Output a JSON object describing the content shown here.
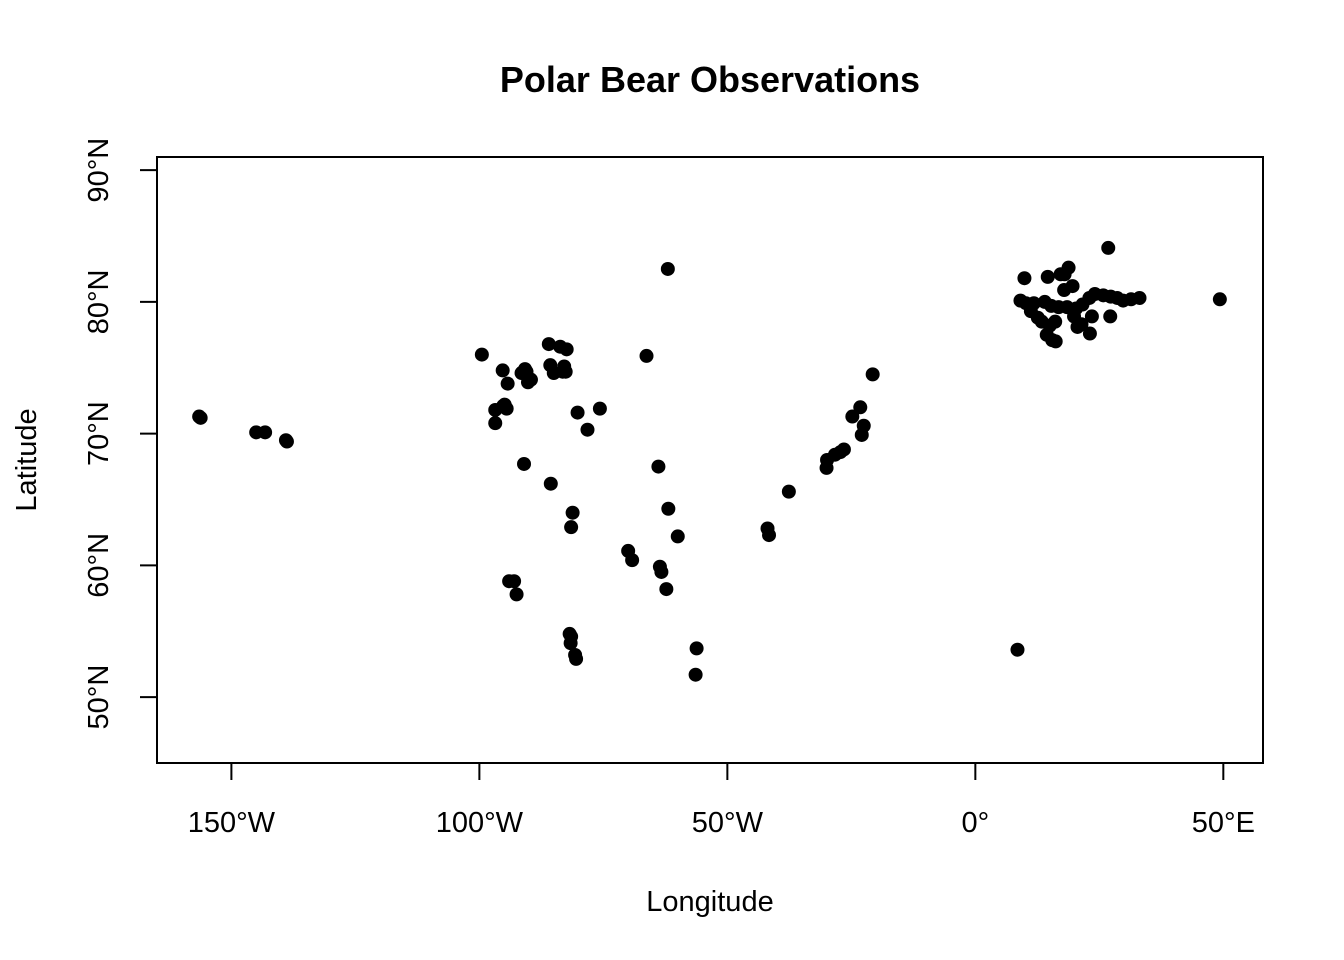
{
  "chart_data": {
    "type": "scatter",
    "title": "Polar Bear Observations",
    "xlabel": "Longitude",
    "ylabel": "Latitude",
    "xlim": [
      -165,
      58
    ],
    "ylim": [
      45,
      91
    ],
    "xticks": [
      {
        "value": -150,
        "label": "150°W"
      },
      {
        "value": -100,
        "label": "100°W"
      },
      {
        "value": -50,
        "label": "50°W"
      },
      {
        "value": 0,
        "label": "0°"
      },
      {
        "value": 50,
        "label": "50°E"
      }
    ],
    "yticks": [
      {
        "value": 50,
        "label": "50°N"
      },
      {
        "value": 60,
        "label": "60°N"
      },
      {
        "value": 70,
        "label": "70°N"
      },
      {
        "value": 80,
        "label": "80°N"
      },
      {
        "value": 90,
        "label": "90°N"
      }
    ],
    "grid": false,
    "legend": "none",
    "point_color": "#000000",
    "points": [
      [
        -156.5,
        71.3
      ],
      [
        -156.2,
        71.2
      ],
      [
        -145.0,
        70.1
      ],
      [
        -143.2,
        70.1
      ],
      [
        -139.0,
        69.5
      ],
      [
        -138.8,
        69.4
      ],
      [
        -99.5,
        76.0
      ],
      [
        -95.3,
        74.8
      ],
      [
        -94.3,
        73.8
      ],
      [
        -96.8,
        71.8
      ],
      [
        -95.2,
        72.1
      ],
      [
        -94.9,
        72.2
      ],
      [
        -94.5,
        71.9
      ],
      [
        -96.8,
        70.8
      ],
      [
        -91.5,
        74.6
      ],
      [
        -90.8,
        74.9
      ],
      [
        -90.5,
        74.7
      ],
      [
        -90.2,
        73.9
      ],
      [
        -89.6,
        74.1
      ],
      [
        -86.0,
        76.8
      ],
      [
        -83.7,
        76.6
      ],
      [
        -82.4,
        76.4
      ],
      [
        -85.7,
        75.2
      ],
      [
        -85.0,
        74.6
      ],
      [
        -83.2,
        74.7
      ],
      [
        -82.9,
        75.1
      ],
      [
        -82.6,
        74.7
      ],
      [
        -75.7,
        71.9
      ],
      [
        -80.2,
        71.6
      ],
      [
        -78.2,
        70.3
      ],
      [
        -91.0,
        67.7
      ],
      [
        -85.6,
        66.2
      ],
      [
        -81.2,
        64.0
      ],
      [
        -81.5,
        62.9
      ],
      [
        -94.0,
        58.8
      ],
      [
        -93.0,
        58.8
      ],
      [
        -92.5,
        57.8
      ],
      [
        -81.8,
        54.8
      ],
      [
        -81.5,
        54.6
      ],
      [
        -81.6,
        54.1
      ],
      [
        -80.7,
        53.2
      ],
      [
        -80.5,
        52.9
      ],
      [
        -62.0,
        82.5
      ],
      [
        -66.3,
        75.9
      ],
      [
        -63.9,
        67.5
      ],
      [
        -61.9,
        64.3
      ],
      [
        -60.0,
        62.2
      ],
      [
        -70.0,
        61.1
      ],
      [
        -69.2,
        60.4
      ],
      [
        -63.6,
        59.9
      ],
      [
        -63.3,
        59.5
      ],
      [
        -62.3,
        58.2
      ],
      [
        -56.2,
        53.7
      ],
      [
        -56.4,
        51.7
      ],
      [
        -41.9,
        62.8
      ],
      [
        -41.6,
        62.3
      ],
      [
        -37.6,
        65.6
      ],
      [
        -29.9,
        68.0
      ],
      [
        -28.3,
        68.4
      ],
      [
        -30.0,
        67.4
      ],
      [
        -26.5,
        68.8
      ],
      [
        -27.2,
        68.6
      ],
      [
        -24.8,
        71.3
      ],
      [
        -23.2,
        72.0
      ],
      [
        -22.5,
        70.6
      ],
      [
        -22.9,
        69.9
      ],
      [
        -20.7,
        74.5
      ],
      [
        8.5,
        53.6
      ],
      [
        9.9,
        81.8
      ],
      [
        26.8,
        84.1
      ],
      [
        18.8,
        82.6
      ],
      [
        14.6,
        81.9
      ],
      [
        17.2,
        82.1
      ],
      [
        18.0,
        82.1
      ],
      [
        19.6,
        81.2
      ],
      [
        17.9,
        80.9
      ],
      [
        9.1,
        80.1
      ],
      [
        10.2,
        79.9
      ],
      [
        11.8,
        79.9
      ],
      [
        14.0,
        80.0
      ],
      [
        15.3,
        79.7
      ],
      [
        16.8,
        79.6
      ],
      [
        18.5,
        79.6
      ],
      [
        20.3,
        79.5
      ],
      [
        21.6,
        79.8
      ],
      [
        23.0,
        80.3
      ],
      [
        24.1,
        80.6
      ],
      [
        25.8,
        80.5
      ],
      [
        27.3,
        80.4
      ],
      [
        28.6,
        80.3
      ],
      [
        29.8,
        80.1
      ],
      [
        31.4,
        80.2
      ],
      [
        33.1,
        80.3
      ],
      [
        11.2,
        79.3
      ],
      [
        12.6,
        78.8
      ],
      [
        13.4,
        78.5
      ],
      [
        15.0,
        78.2
      ],
      [
        16.1,
        78.5
      ],
      [
        14.4,
        77.5
      ],
      [
        15.5,
        77.1
      ],
      [
        16.2,
        77.0
      ],
      [
        19.9,
        78.9
      ],
      [
        20.6,
        78.1
      ],
      [
        21.4,
        78.3
      ],
      [
        23.5,
        78.9
      ],
      [
        23.1,
        77.6
      ],
      [
        27.2,
        78.9
      ],
      [
        49.3,
        80.2
      ]
    ]
  }
}
